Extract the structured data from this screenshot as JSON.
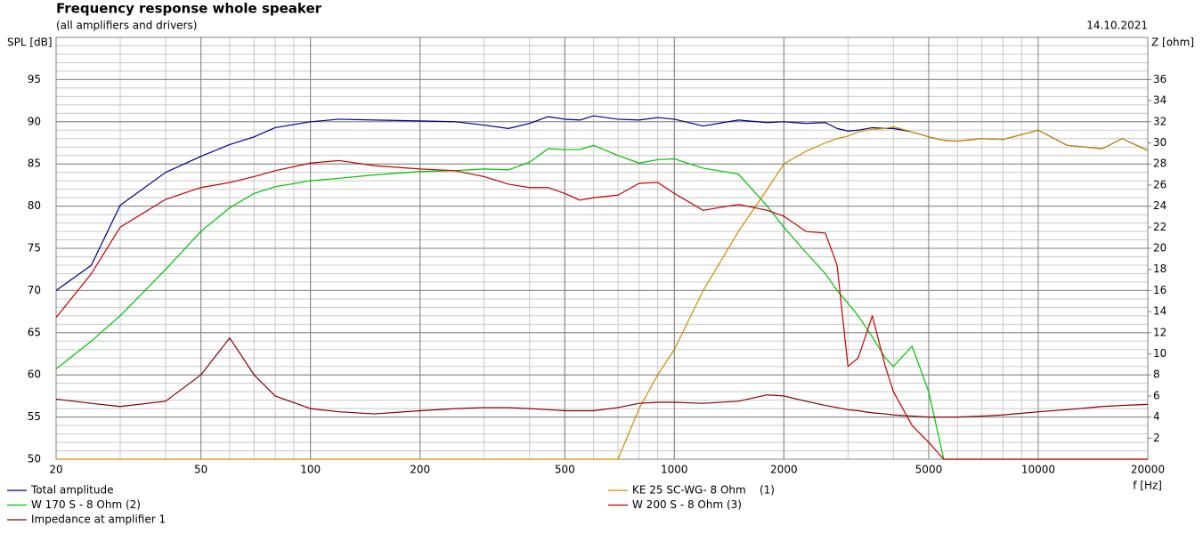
{
  "chart_data": {
    "type": "line",
    "title": "Frequency response whole speaker",
    "subtitle": "(all amplifiers and drivers)",
    "date": "14.10.2021",
    "y_label": "SPL [dB]",
    "y2_label": "Z [ohm]",
    "x_label": "f [Hz]",
    "log_x": true,
    "grid": true,
    "xlim": [
      20,
      20000
    ],
    "xticks": [
      20,
      50,
      100,
      200,
      500,
      1000,
      2000,
      5000,
      10000,
      20000
    ],
    "ylim": [
      50,
      100
    ],
    "yticks": [
      50,
      55,
      60,
      65,
      70,
      75,
      80,
      85,
      90,
      95
    ],
    "y2lim": [
      0,
      40
    ],
    "y2ticks": [
      2,
      4,
      6,
      8,
      10,
      12,
      14,
      16,
      18,
      20,
      22,
      24,
      26,
      28,
      30,
      32,
      34,
      36
    ],
    "x": [
      20,
      25,
      30,
      40,
      50,
      60,
      70,
      80,
      100,
      120,
      150,
      200,
      250,
      300,
      350,
      400,
      450,
      500,
      550,
      600,
      700,
      800,
      900,
      1000,
      1200,
      1500,
      1800,
      2000,
      2300,
      2600,
      2800,
      3000,
      3200,
      3500,
      3800,
      4000,
      4500,
      5000,
      5500,
      6000,
      7000,
      8000,
      10000,
      12000,
      15000,
      17000,
      20000
    ],
    "series": [
      {
        "name": "Total amplitude",
        "color": "#000080",
        "values": [
          70,
          73,
          80.1,
          84,
          85.9,
          87.3,
          88.2,
          89.3,
          90,
          90.3,
          90.2,
          90.1,
          90,
          89.6,
          89.2,
          89.8,
          90.6,
          90.3,
          90.2,
          90.7,
          90.3,
          90.2,
          90.5,
          90.3,
          89.5,
          90.2,
          89.9,
          90,
          89.8,
          89.9,
          89.2,
          88.9,
          89,
          89.3,
          89.2,
          89.2,
          88.8,
          88.2,
          87.8,
          87.7,
          88,
          87.9,
          89,
          87.2,
          86.8,
          88,
          86.6
        ]
      },
      {
        "name": "KE 25 SC-WG- 8 Ohm    (1)",
        "color": "#d08a00",
        "values": [
          50,
          50,
          50,
          50,
          50,
          50,
          50,
          50,
          50,
          50,
          50,
          50,
          50,
          50,
          50,
          50,
          50,
          50,
          50,
          50,
          50,
          56,
          60,
          63,
          70,
          77,
          82,
          85,
          86.5,
          87.5,
          88,
          88.3,
          88.8,
          89.1,
          89.2,
          89.4,
          88.8,
          88.2,
          87.8,
          87.7,
          88,
          87.9,
          89,
          87.2,
          86.8,
          88,
          86.6
        ]
      },
      {
        "name": "W 170 S - 8 Ohm (2)",
        "color": "#00c000",
        "values": [
          60.7,
          64,
          67,
          72.5,
          77,
          79.8,
          81.5,
          82.3,
          83,
          83.3,
          83.7,
          84.1,
          84.2,
          84.4,
          84.3,
          85.2,
          86.8,
          86.7,
          86.7,
          87.2,
          86,
          85.1,
          85.5,
          85.6,
          84.5,
          83.8,
          80,
          77.5,
          74.5,
          72,
          70,
          68.5,
          67,
          64.5,
          62,
          61,
          63.4,
          58,
          50,
          50,
          50,
          50,
          50,
          50,
          50,
          50,
          50
        ]
      },
      {
        "name": "W 200 S - 8 Ohm (3)",
        "color": "#c00000",
        "values": [
          66.8,
          72,
          77.5,
          80.8,
          82.2,
          82.8,
          83.5,
          84.2,
          85.1,
          85.4,
          84.8,
          84.4,
          84.2,
          83.5,
          82.6,
          82.2,
          82.2,
          81.5,
          80.7,
          81,
          81.3,
          82.7,
          82.8,
          81.5,
          79.5,
          80.2,
          79.5,
          78.8,
          77,
          76.8,
          73,
          61,
          62,
          67,
          61,
          58,
          54,
          52,
          50,
          50,
          50,
          50,
          50,
          50,
          50,
          50,
          50
        ]
      },
      {
        "name": "Impedance at amplifier 1",
        "color": "#800000",
        "axis": "y2",
        "values": [
          5.7,
          5.3,
          5,
          5.5,
          8,
          11.5,
          8,
          6,
          4.8,
          4.5,
          4.3,
          4.6,
          4.8,
          4.9,
          4.9,
          4.8,
          4.7,
          4.6,
          4.6,
          4.6,
          4.9,
          5.3,
          5.4,
          5.4,
          5.3,
          5.5,
          6.1,
          6,
          5.5,
          5.1,
          4.9,
          4.7,
          4.6,
          4.4,
          4.3,
          4.2,
          4.1,
          4,
          4,
          4,
          4.1,
          4.2,
          4.5,
          4.7,
          5,
          5.1,
          5.2
        ]
      }
    ]
  }
}
